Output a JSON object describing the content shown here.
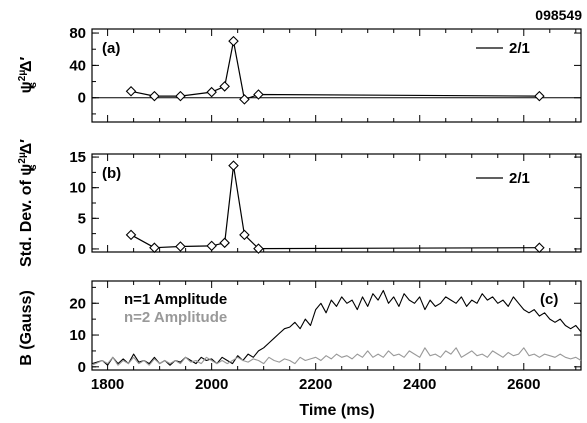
{
  "figure": {
    "id_label": "098549",
    "xlabel": "Time (ms)",
    "x_ticks": [
      "1800",
      "2000",
      "2200",
      "2400",
      "2600"
    ]
  },
  "chart_data": [
    {
      "type": "line",
      "panel_label": "(a)",
      "ylabel_base": "ψ",
      "ylabel_sub": "s",
      "ylabel_sup": "2μ",
      "ylabel_tail": "Δ′",
      "legend": "2/1",
      "y_ticks": [
        "0",
        "40",
        "80"
      ],
      "ylim": [
        -30,
        85
      ],
      "xlim": [
        1770,
        2710
      ],
      "series": [
        {
          "name": "2/1",
          "marker": "diamond",
          "x": [
            1845,
            1890,
            1940,
            2000,
            2025,
            2042,
            2063,
            2090,
            2630
          ],
          "y": [
            8,
            2,
            2,
            7,
            14,
            70,
            -2,
            4,
            2
          ]
        }
      ]
    },
    {
      "type": "line",
      "panel_label": "(b)",
      "ylabel_prefix": "Std. Dev. of ",
      "ylabel_base": "ψ",
      "ylabel_sub": "s",
      "ylabel_sup": "2μ",
      "ylabel_tail": "Δ′",
      "legend": "2/1",
      "y_ticks": [
        "0",
        "5",
        "10",
        "15"
      ],
      "ylim": [
        -0.5,
        15.5
      ],
      "xlim": [
        1770,
        2710
      ],
      "series": [
        {
          "name": "2/1",
          "marker": "diamond",
          "x": [
            1845,
            1890,
            1940,
            2000,
            2025,
            2042,
            2063,
            2090,
            2630
          ],
          "y": [
            2.3,
            0.2,
            0.4,
            0.5,
            1.0,
            13.6,
            2.3,
            0.05,
            0.2
          ]
        }
      ]
    },
    {
      "type": "line",
      "panel_label": "(c)",
      "ylabel": "B (Gauss)",
      "y_ticks": [
        "0",
        "10",
        "20"
      ],
      "ylim": [
        -1,
        27
      ],
      "xlim": [
        1770,
        2710
      ],
      "series": [
        {
          "name": "n=1 Amplitude",
          "color": "#000000",
          "x": [
            1770,
            1790,
            1800,
            1810,
            1820,
            1830,
            1840,
            1850,
            1860,
            1870,
            1880,
            1890,
            1900,
            1910,
            1920,
            1930,
            1940,
            1950,
            1960,
            1970,
            1980,
            1990,
            2000,
            2010,
            2020,
            2030,
            2040,
            2050,
            2060,
            2070,
            2080,
            2090,
            2100,
            2110,
            2120,
            2130,
            2140,
            2150,
            2160,
            2170,
            2180,
            2190,
            2200,
            2210,
            2220,
            2230,
            2240,
            2250,
            2260,
            2270,
            2280,
            2290,
            2300,
            2310,
            2320,
            2330,
            2340,
            2350,
            2360,
            2370,
            2380,
            2390,
            2400,
            2410,
            2420,
            2430,
            2440,
            2450,
            2460,
            2470,
            2480,
            2490,
            2500,
            2510,
            2520,
            2530,
            2540,
            2550,
            2560,
            2570,
            2580,
            2590,
            2600,
            2610,
            2620,
            2630,
            2640,
            2650,
            2660,
            2670,
            2680,
            2690,
            2700,
            2710
          ],
          "y": [
            1,
            2,
            0.5,
            3,
            1,
            2.5,
            1,
            4,
            1.5,
            2,
            1,
            3,
            1,
            2,
            0.5,
            2,
            1.5,
            3,
            2,
            1,
            3,
            2,
            2.5,
            1,
            3,
            2,
            1,
            3.5,
            2,
            4,
            3,
            5,
            6,
            7.5,
            9,
            10.5,
            12,
            12.5,
            14,
            12,
            15,
            13,
            18,
            20,
            17,
            21,
            19,
            22,
            20,
            21,
            18,
            22,
            19,
            23,
            21,
            24,
            20,
            22,
            19,
            23,
            21,
            20,
            22,
            18,
            21,
            19,
            20,
            22,
            21,
            20,
            22,
            19,
            21,
            20,
            23,
            21,
            22,
            20,
            21,
            19,
            22,
            20,
            18,
            17,
            18,
            16,
            17,
            15,
            14,
            15,
            13,
            12,
            13,
            11
          ]
        },
        {
          "name": "n=2 Amplitude",
          "color": "#999999",
          "x": [
            1770,
            1790,
            1800,
            1810,
            1820,
            1830,
            1840,
            1850,
            1860,
            1870,
            1880,
            1890,
            1900,
            1910,
            1920,
            1930,
            1940,
            1950,
            1960,
            1970,
            1980,
            1990,
            2000,
            2010,
            2020,
            2030,
            2040,
            2050,
            2060,
            2070,
            2080,
            2090,
            2100,
            2110,
            2120,
            2130,
            2140,
            2150,
            2160,
            2170,
            2180,
            2190,
            2200,
            2210,
            2220,
            2230,
            2240,
            2250,
            2260,
            2270,
            2280,
            2290,
            2300,
            2310,
            2320,
            2330,
            2340,
            2350,
            2360,
            2370,
            2380,
            2390,
            2400,
            2410,
            2420,
            2430,
            2440,
            2450,
            2460,
            2470,
            2480,
            2490,
            2500,
            2510,
            2520,
            2530,
            2540,
            2550,
            2560,
            2570,
            2580,
            2590,
            2600,
            2610,
            2620,
            2630,
            2640,
            2650,
            2660,
            2670,
            2680,
            2690,
            2700,
            2710
          ],
          "y": [
            0.5,
            2,
            1,
            3,
            0.5,
            2,
            1,
            3,
            1,
            2,
            0.5,
            2.5,
            1,
            2,
            1,
            2,
            1,
            3,
            1.5,
            2,
            1,
            3,
            2,
            1,
            2,
            1,
            2,
            3,
            2,
            1.5,
            2.5,
            2,
            1,
            3,
            2,
            1.5,
            2.5,
            2,
            1,
            3,
            2,
            2.5,
            3,
            2,
            3.5,
            2.5,
            4,
            3,
            3.5,
            2.5,
            4,
            3,
            5,
            3,
            4,
            3,
            5,
            3.5,
            4,
            3,
            5,
            4,
            3,
            6,
            3.5,
            4,
            3,
            5,
            4,
            6,
            3,
            4,
            5,
            3.5,
            4,
            3,
            5,
            4,
            3,
            4.5,
            3.5,
            4,
            6,
            3.5,
            4,
            3,
            4,
            3.5,
            3,
            4,
            3,
            2.5,
            3,
            2
          ]
        }
      ]
    }
  ]
}
